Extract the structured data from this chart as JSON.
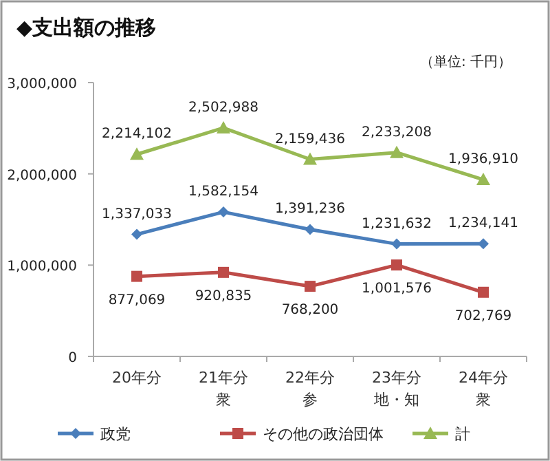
{
  "chart_data": {
    "type": "line",
    "title": "◆支出額の推移",
    "annotations": [
      "（単位: 千円）"
    ],
    "categories": [
      "20年分",
      "21年分衆",
      "22年分参",
      "23年分地・知",
      "24年分衆"
    ],
    "series": [
      {
        "name": "政党",
        "color": "#4a7ebb",
        "marker": "diamond",
        "values": [
          1337033,
          1582154,
          1391236,
          1231632,
          1234141
        ],
        "value_labels": [
          "1,337,033",
          "1,582,154",
          "1,391,236",
          "1,231,632",
          "1,234,141"
        ]
      },
      {
        "name": "その他の政治団体",
        "color": "#be4b48",
        "marker": "square",
        "values": [
          877069,
          920835,
          768200,
          1001576,
          702769
        ],
        "value_labels": [
          "877,069",
          "920,835",
          "768,200",
          "1,001,576",
          "702,769"
        ]
      },
      {
        "name": "計",
        "color": "#98b954",
        "marker": "triangle",
        "values": [
          2214102,
          2502988,
          2159436,
          2233208,
          1936910
        ],
        "value_labels": [
          "2,214,102",
          "2,502,988",
          "2,159,436",
          "2,233,208",
          "1,936,910"
        ]
      }
    ],
    "ylim": [
      0,
      3000000
    ],
    "yticks": [
      0,
      {
        "value": 1000000,
        "label": "1,000,000"
      },
      {
        "value": 2000000,
        "label": "2,000,000"
      },
      {
        "value": 3000000,
        "label": "3,000,000"
      }
    ],
    "grid": false,
    "legend": "bottom"
  }
}
